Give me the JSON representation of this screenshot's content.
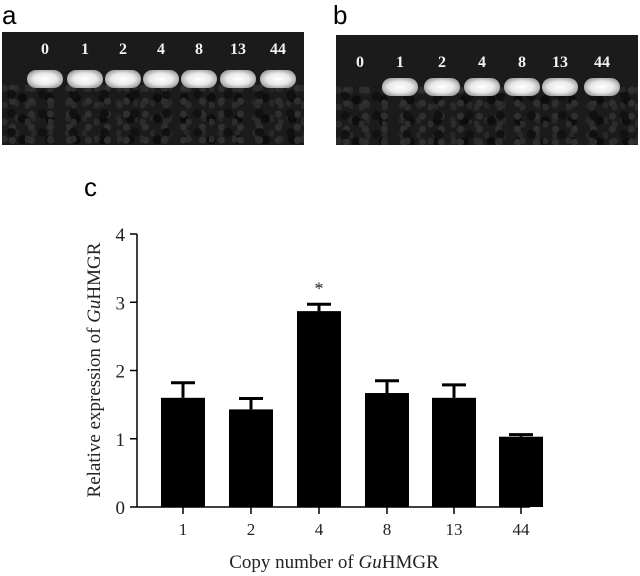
{
  "panels": {
    "a": {
      "letter": "a",
      "lanes": [
        {
          "label": "0",
          "band": true
        },
        {
          "label": "1",
          "band": true
        },
        {
          "label": "2",
          "band": true
        },
        {
          "label": "4",
          "band": true
        },
        {
          "label": "8",
          "band": true
        },
        {
          "label": "13",
          "band": true
        },
        {
          "label": "44",
          "band": true
        }
      ]
    },
    "b": {
      "letter": "b",
      "lanes": [
        {
          "label": "0",
          "band": false
        },
        {
          "label": "1",
          "band": true
        },
        {
          "label": "2",
          "band": true
        },
        {
          "label": "4",
          "band": true
        },
        {
          "label": "8",
          "band": true
        },
        {
          "label": "13",
          "band": true
        },
        {
          "label": "44",
          "band": true
        }
      ]
    },
    "c": {
      "letter": "c"
    }
  },
  "chart_data": {
    "type": "bar",
    "categories": [
      "1",
      "2",
      "4",
      "8",
      "13",
      "44"
    ],
    "values": [
      1.6,
      1.43,
      2.87,
      1.67,
      1.6,
      1.03
    ],
    "errors": [
      0.22,
      0.16,
      0.1,
      0.18,
      0.19,
      0.03
    ],
    "significance": [
      "",
      "",
      "*",
      "",
      "",
      ""
    ],
    "ylim": [
      0,
      4
    ],
    "yticks": [
      "0",
      "1",
      "2",
      "3",
      "4"
    ],
    "ylabel_parts": [
      "Relative expression of ",
      "Gu",
      "HMGR"
    ],
    "xlabel_parts": [
      "Copy number of ",
      "Gu",
      "HMGR"
    ],
    "bar_color": "#000000",
    "grid": false
  }
}
